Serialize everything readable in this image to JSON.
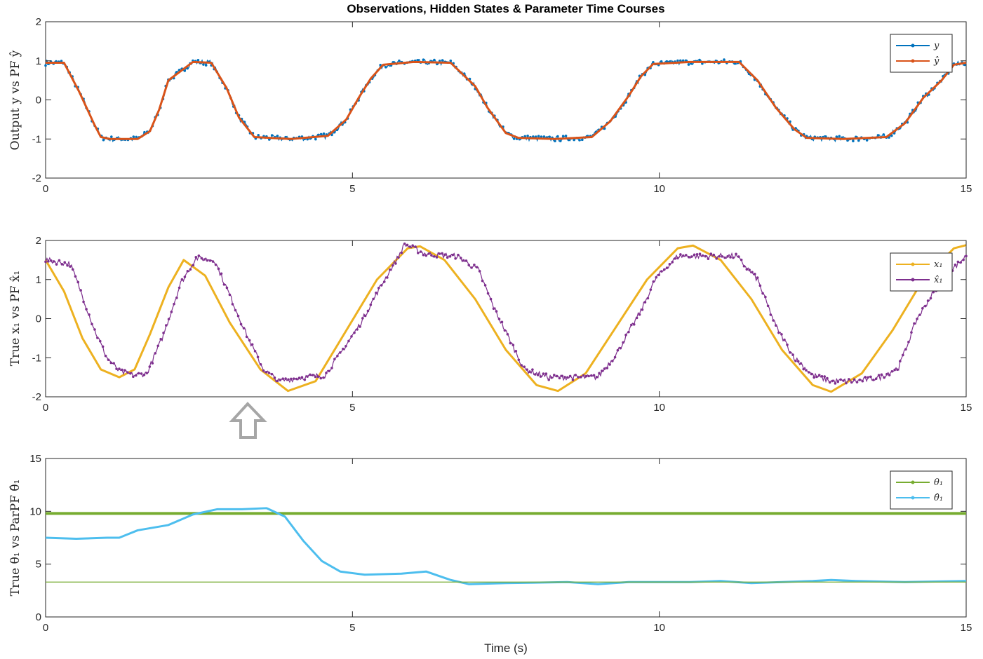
{
  "figure_title": "Observations, Hidden States & Parameter Time Courses",
  "xlabel": "Time (s)",
  "marker_icon": "up-arrow-icon",
  "chart_data": [
    {
      "type": "line",
      "ylabel": "Output y vs PF ŷ",
      "xlim": [
        0,
        15
      ],
      "ylim": [
        -2,
        2
      ],
      "xticks": [
        0,
        5,
        10,
        15
      ],
      "yticks": [
        2,
        1,
        0,
        -1,
        -2
      ],
      "grid": false,
      "legend_position": "top-right",
      "series": [
        {
          "name": "y",
          "color": "#0072BD",
          "style": "dots",
          "x": [
            0,
            0.3,
            0.55,
            0.8,
            0.9,
            1.05,
            1.5,
            1.7,
            1.85,
            2.0,
            2.4,
            2.7,
            2.95,
            3.15,
            3.4,
            4.0,
            4.6,
            4.9,
            5.1,
            5.3,
            5.5,
            6.0,
            6.6,
            7.0,
            7.2,
            7.5,
            7.7,
            8.3,
            8.9,
            9.2,
            9.5,
            9.7,
            9.9,
            10.5,
            11.3,
            11.6,
            11.9,
            12.2,
            12.4,
            13.0,
            13.7,
            14.0,
            14.3,
            14.6,
            14.8,
            15.0
          ],
          "y": [
            0.95,
            0.95,
            0.2,
            -0.65,
            -0.95,
            -1.0,
            -1.0,
            -0.8,
            -0.25,
            0.5,
            0.97,
            0.95,
            0.3,
            -0.45,
            -0.95,
            -1.0,
            -0.92,
            -0.5,
            0.05,
            0.55,
            0.9,
            0.97,
            0.95,
            0.35,
            -0.2,
            -0.85,
            -0.97,
            -1.0,
            -0.95,
            -0.55,
            0.1,
            0.6,
            0.92,
            0.97,
            0.97,
            0.5,
            -0.2,
            -0.75,
            -0.97,
            -1.0,
            -0.95,
            -0.6,
            0.05,
            0.5,
            0.9,
            0.95
          ]
        },
        {
          "name": "ŷ",
          "color": "#D95319",
          "style": "line",
          "x": [
            0,
            0.3,
            0.55,
            0.8,
            0.9,
            1.05,
            1.5,
            1.7,
            1.85,
            2.0,
            2.4,
            2.7,
            2.95,
            3.15,
            3.4,
            4.0,
            4.6,
            4.9,
            5.1,
            5.3,
            5.5,
            6.0,
            6.6,
            7.0,
            7.2,
            7.5,
            7.7,
            8.3,
            8.9,
            9.2,
            9.5,
            9.7,
            9.9,
            10.5,
            11.3,
            11.6,
            11.9,
            12.2,
            12.4,
            13.0,
            13.7,
            14.0,
            14.3,
            14.6,
            14.8,
            15.0
          ],
          "y": [
            0.95,
            0.95,
            0.2,
            -0.65,
            -0.95,
            -1.0,
            -1.0,
            -0.8,
            -0.25,
            0.5,
            0.97,
            0.95,
            0.3,
            -0.45,
            -0.95,
            -1.0,
            -0.92,
            -0.5,
            0.05,
            0.55,
            0.9,
            0.97,
            0.95,
            0.35,
            -0.2,
            -0.85,
            -0.97,
            -1.0,
            -0.95,
            -0.55,
            0.1,
            0.6,
            0.92,
            0.97,
            0.97,
            0.5,
            -0.2,
            -0.75,
            -0.97,
            -1.0,
            -0.95,
            -0.6,
            0.05,
            0.5,
            0.9,
            0.95
          ]
        }
      ]
    },
    {
      "type": "line",
      "ylabel": "True x₁ vs PF x̂₁",
      "xlim": [
        0,
        15
      ],
      "ylim": [
        -2,
        2
      ],
      "xticks": [
        0,
        5,
        10,
        15
      ],
      "yticks": [
        2,
        1,
        0,
        -1,
        -2
      ],
      "grid": false,
      "legend_position": "top-right",
      "series": [
        {
          "name": "x₁",
          "color": "#EDB120",
          "style": "line",
          "x": [
            0,
            0.3,
            0.6,
            0.9,
            1.2,
            1.45,
            1.7,
            2.0,
            2.25,
            2.6,
            3.0,
            3.5,
            3.95,
            4.4,
            4.9,
            5.4,
            5.9,
            6.1,
            6.5,
            7.0,
            7.5,
            8.0,
            8.35,
            8.8,
            9.3,
            9.8,
            10.3,
            10.55,
            11.0,
            11.5,
            12.0,
            12.5,
            12.8,
            13.3,
            13.8,
            14.3,
            14.8,
            15.0
          ],
          "y": [
            1.5,
            0.7,
            -0.5,
            -1.3,
            -1.5,
            -1.3,
            -0.4,
            0.8,
            1.5,
            1.1,
            -0.1,
            -1.3,
            -1.85,
            -1.6,
            -0.3,
            1.0,
            1.8,
            1.85,
            1.5,
            0.5,
            -0.8,
            -1.7,
            -1.85,
            -1.4,
            -0.2,
            1.0,
            1.8,
            1.87,
            1.5,
            0.5,
            -0.8,
            -1.7,
            -1.87,
            -1.4,
            -0.3,
            1.0,
            1.8,
            1.88
          ]
        },
        {
          "name": "x̂₁",
          "color": "#7E2F8E",
          "style": "dots",
          "x": [
            0,
            0.4,
            0.55,
            0.8,
            1.0,
            1.2,
            1.45,
            1.65,
            1.9,
            2.2,
            2.45,
            2.75,
            3.0,
            3.3,
            3.55,
            3.8,
            4.2,
            4.55,
            4.8,
            5.1,
            5.45,
            5.75,
            5.85,
            6.2,
            6.7,
            7.05,
            7.3,
            7.55,
            7.8,
            8.2,
            8.7,
            9.0,
            9.3,
            9.7,
            9.95,
            10.3,
            11.0,
            11.25,
            11.6,
            11.9,
            12.2,
            12.5,
            12.8,
            13.2,
            13.6,
            13.9,
            14.2,
            14.6,
            15.0
          ],
          "y": [
            1.5,
            1.4,
            0.8,
            -0.3,
            -1.0,
            -1.35,
            -1.45,
            -1.4,
            -0.5,
            0.9,
            1.55,
            1.5,
            0.6,
            -0.5,
            -1.3,
            -1.6,
            -1.5,
            -1.45,
            -0.9,
            -0.2,
            0.8,
            1.6,
            1.9,
            1.65,
            1.6,
            1.25,
            0.3,
            -0.5,
            -1.3,
            -1.5,
            -1.5,
            -1.5,
            -0.9,
            0.2,
            1.05,
            1.6,
            1.6,
            1.6,
            1.0,
            -0.2,
            -1.0,
            -1.45,
            -1.6,
            -1.6,
            -1.5,
            -1.25,
            0.0,
            1.0,
            1.6
          ]
        }
      ]
    },
    {
      "type": "line",
      "ylabel": "True θ₁ vs ParPF θ̂₁",
      "xlim": [
        0,
        15
      ],
      "ylim": [
        0,
        15
      ],
      "xticks": [
        0,
        5,
        10,
        15
      ],
      "yticks": [
        15,
        10,
        5,
        0
      ],
      "grid": false,
      "legend_position": "top-right",
      "series": [
        {
          "name": "θ₁",
          "color": "#77AC30",
          "style": "line",
          "x": [
            0,
            15
          ],
          "y": [
            9.8,
            9.8
          ]
        },
        {
          "name": "θ̂₁",
          "color": "#4DBEEE",
          "style": "line",
          "x": [
            0,
            0.5,
            1.0,
            1.2,
            1.5,
            2.0,
            2.4,
            2.8,
            3.2,
            3.6,
            3.9,
            4.2,
            4.5,
            4.8,
            5.2,
            5.8,
            6.2,
            6.6,
            6.9,
            7.5,
            8.5,
            9.0,
            9.5,
            10.0,
            10.5,
            11.0,
            11.5,
            12.0,
            12.5,
            12.8,
            13.2,
            14.0,
            15.0
          ],
          "y": [
            7.5,
            7.4,
            7.5,
            7.5,
            8.2,
            8.7,
            9.7,
            10.2,
            10.2,
            10.3,
            9.5,
            7.2,
            5.3,
            4.3,
            4.0,
            4.1,
            4.3,
            3.5,
            3.1,
            3.2,
            3.3,
            3.1,
            3.3,
            3.3,
            3.3,
            3.4,
            3.2,
            3.3,
            3.4,
            3.5,
            3.4,
            3.3,
            3.4
          ]
        },
        {
          "name": "",
          "color": "#77AC30",
          "style": "line",
          "x": [
            0,
            15
          ],
          "y": [
            3.3,
            3.3
          ]
        }
      ]
    }
  ]
}
